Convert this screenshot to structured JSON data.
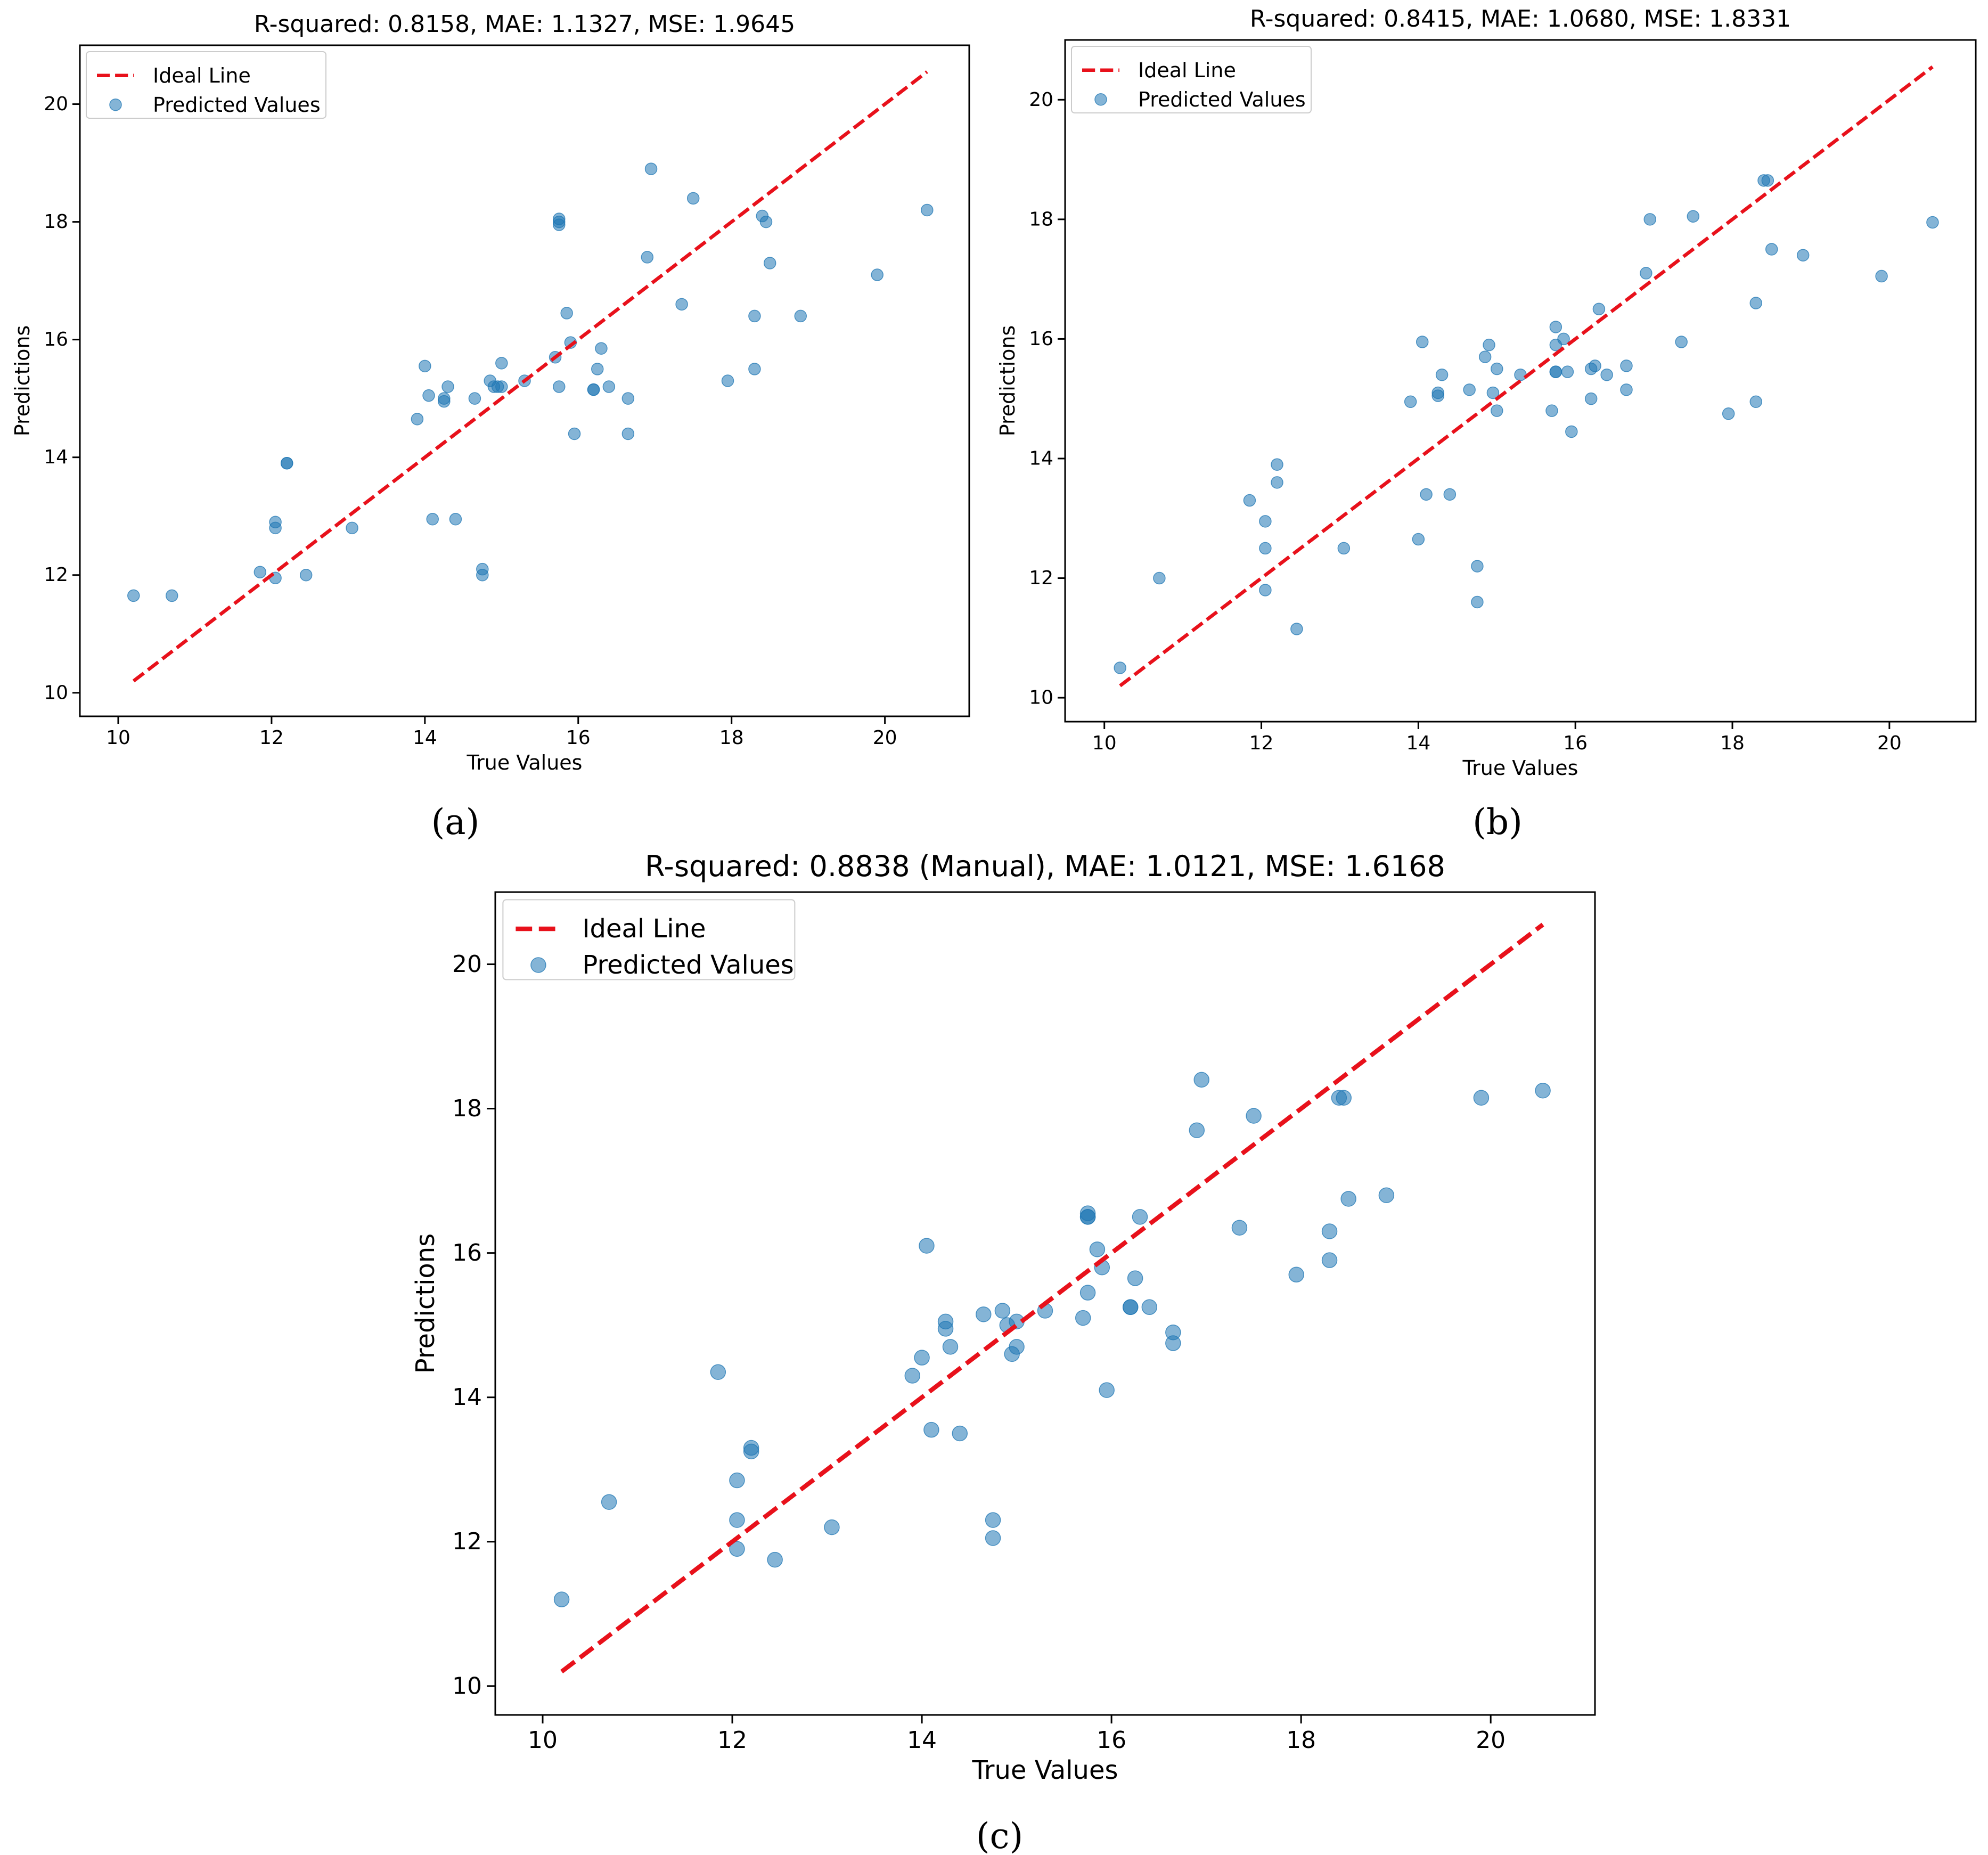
{
  "colors": {
    "ideal_line": "#e8111b",
    "points": "#1f77b4",
    "axes": "#000000",
    "legend_frame": "#cccccc"
  },
  "chart_data": [
    {
      "panel": "(a)",
      "type": "scatter",
      "title": "R-squared: 0.8158, MAE: 1.1327, MSE: 1.9645",
      "xlabel": "True Values",
      "ylabel": "Predictions",
      "xlim": [
        9.5,
        21.1
      ],
      "ylim": [
        9.6,
        21.0
      ],
      "xticks": [
        10,
        12,
        14,
        16,
        18,
        20
      ],
      "yticks": [
        10,
        12,
        14,
        16,
        18,
        20
      ],
      "legend": {
        "location": "upper-left",
        "entries": [
          "Ideal Line",
          "Predicted Values"
        ]
      },
      "ideal_line": {
        "label": "Ideal Line",
        "x": [
          10.2,
          20.55
        ],
        "y": [
          10.2,
          20.55
        ]
      },
      "series": [
        {
          "name": "Predicted Values",
          "x": [
            10.2,
            10.7,
            11.85,
            12.05,
            12.05,
            12.05,
            12.2,
            12.2,
            12.45,
            13.05,
            13.9,
            14.0,
            14.05,
            14.1,
            14.25,
            14.25,
            14.3,
            14.4,
            14.65,
            14.75,
            14.75,
            14.85,
            14.9,
            14.95,
            15.0,
            15.0,
            15.3,
            15.7,
            15.75,
            15.75,
            15.75,
            15.75,
            15.85,
            15.9,
            15.95,
            16.2,
            16.2,
            16.25,
            16.3,
            16.4,
            16.65,
            16.65,
            16.9,
            16.95,
            17.35,
            17.5,
            17.95,
            18.3,
            18.3,
            18.4,
            18.45,
            18.5,
            18.9,
            19.9,
            20.55
          ],
          "y": [
            11.65,
            11.65,
            12.05,
            12.9,
            12.8,
            11.95,
            13.9,
            13.9,
            12.0,
            12.8,
            14.65,
            15.55,
            15.05,
            12.95,
            15.0,
            14.95,
            15.2,
            12.95,
            15.0,
            12.1,
            12.0,
            15.3,
            15.2,
            15.2,
            15.6,
            15.2,
            15.3,
            15.7,
            15.2,
            18.0,
            18.05,
            17.95,
            16.45,
            15.95,
            14.4,
            15.15,
            15.15,
            15.5,
            15.85,
            15.2,
            15.0,
            14.4,
            17.4,
            18.9,
            16.6,
            18.4,
            15.3,
            16.4,
            15.5,
            18.1,
            18.0,
            17.3,
            16.4,
            17.1,
            18.2
          ]
        }
      ]
    },
    {
      "panel": "(b)",
      "type": "scatter",
      "title": "R-squared: 0.8415, MAE: 1.0680, MSE: 1.8331",
      "xlabel": "True Values",
      "ylabel": "Predictions",
      "xlim": [
        9.5,
        21.1
      ],
      "ylim": [
        9.6,
        21.0
      ],
      "xticks": [
        10,
        12,
        14,
        16,
        18,
        20
      ],
      "yticks": [
        10,
        12,
        14,
        16,
        18,
        20
      ],
      "legend": {
        "location": "upper-left",
        "entries": [
          "Ideal Line",
          "Predicted Values"
        ]
      },
      "ideal_line": {
        "label": "Ideal Line",
        "x": [
          10.2,
          20.55
        ],
        "y": [
          10.2,
          20.55
        ]
      },
      "series": [
        {
          "name": "Predicted Values",
          "x": [
            10.2,
            10.7,
            11.85,
            12.05,
            12.05,
            12.05,
            12.2,
            12.2,
            12.45,
            13.05,
            13.9,
            14.0,
            14.05,
            14.1,
            14.25,
            14.25,
            14.3,
            14.4,
            14.65,
            14.75,
            14.75,
            14.85,
            14.9,
            14.95,
            15.0,
            15.0,
            15.3,
            15.7,
            15.75,
            15.75,
            15.75,
            15.75,
            15.85,
            15.9,
            15.95,
            16.2,
            16.2,
            16.25,
            16.3,
            16.4,
            16.65,
            16.65,
            16.9,
            16.95,
            17.35,
            17.5,
            17.95,
            18.3,
            18.3,
            18.4,
            18.45,
            18.5,
            18.9,
            19.9,
            20.55
          ],
          "y": [
            10.5,
            12.0,
            13.3,
            12.95,
            12.5,
            11.8,
            13.9,
            13.6,
            11.15,
            12.5,
            14.95,
            12.65,
            15.95,
            13.4,
            15.1,
            15.05,
            15.4,
            13.4,
            15.15,
            12.2,
            11.6,
            15.7,
            15.9,
            15.1,
            15.5,
            14.8,
            15.4,
            14.8,
            15.9,
            16.2,
            15.45,
            15.45,
            16.0,
            15.45,
            14.45,
            15.5,
            15.0,
            15.55,
            16.5,
            15.4,
            15.55,
            15.15,
            17.1,
            18.0,
            15.95,
            18.05,
            14.75,
            16.6,
            14.95,
            18.65,
            18.65,
            17.5,
            17.4,
            17.05,
            17.95
          ]
        }
      ]
    },
    {
      "panel": "(c)",
      "type": "scatter",
      "title": "R-squared: 0.8838 (Manual), MAE: 1.0121, MSE: 1.6168",
      "xlabel": "True Values",
      "ylabel": "Predictions",
      "xlim": [
        9.5,
        21.1
      ],
      "ylim": [
        9.6,
        21.0
      ],
      "xticks": [
        10,
        12,
        14,
        16,
        18,
        20
      ],
      "yticks": [
        10,
        12,
        14,
        16,
        18,
        20
      ],
      "legend": {
        "location": "upper-left",
        "entries": [
          "Ideal Line",
          "Predicted Values"
        ]
      },
      "ideal_line": {
        "label": "Ideal Line",
        "x": [
          10.2,
          20.55
        ],
        "y": [
          10.2,
          20.55
        ]
      },
      "series": [
        {
          "name": "Predicted Values",
          "x": [
            10.2,
            10.7,
            11.85,
            12.05,
            12.05,
            12.05,
            12.2,
            12.2,
            12.45,
            13.05,
            13.9,
            14.0,
            14.05,
            14.1,
            14.25,
            14.25,
            14.3,
            14.4,
            14.65,
            14.75,
            14.75,
            14.85,
            14.9,
            14.95,
            15.0,
            15.0,
            15.3,
            15.7,
            15.75,
            15.75,
            15.75,
            15.75,
            15.85,
            15.9,
            15.95,
            16.2,
            16.2,
            16.25,
            16.3,
            16.4,
            16.65,
            16.65,
            16.9,
            16.95,
            17.35,
            17.5,
            17.95,
            18.3,
            18.3,
            18.4,
            18.45,
            18.5,
            18.9,
            19.9,
            20.55
          ],
          "y": [
            11.2,
            12.55,
            14.35,
            12.85,
            12.3,
            11.9,
            13.3,
            13.25,
            11.75,
            12.2,
            14.3,
            14.55,
            16.1,
            13.55,
            15.05,
            14.95,
            14.7,
            13.5,
            15.15,
            12.3,
            12.05,
            15.2,
            15.0,
            14.6,
            15.05,
            14.7,
            15.2,
            15.1,
            15.45,
            16.5,
            16.55,
            16.5,
            16.05,
            15.8,
            14.1,
            15.25,
            15.25,
            15.65,
            16.5,
            15.25,
            14.9,
            14.75,
            17.7,
            18.4,
            16.35,
            17.9,
            15.7,
            16.3,
            15.9,
            18.15,
            18.15,
            16.75,
            16.8,
            18.15,
            18.25
          ]
        }
      ]
    }
  ]
}
